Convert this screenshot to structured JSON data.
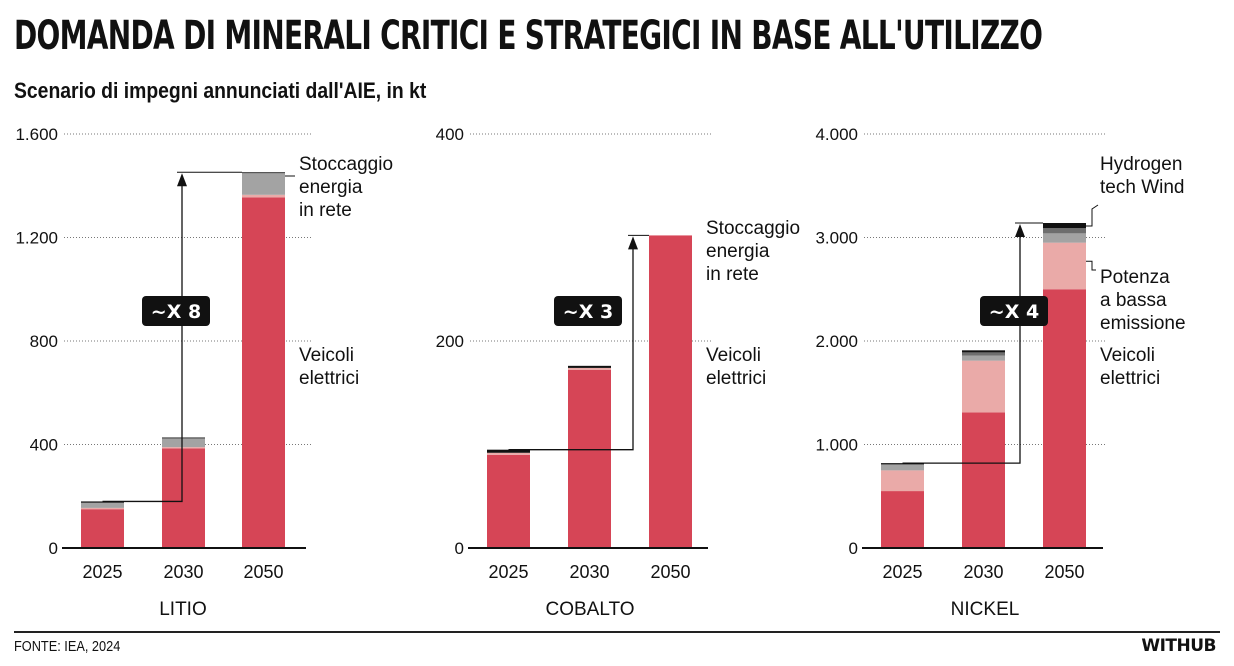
{
  "title": "DOMANDA DI MINERALI CRITICI E STRATEGICI IN BASE ALL'UTILIZZO",
  "subtitle": "Scenario di impegni annunciati dall'AIE, in kt",
  "source": "FONTE: IEA, 2024",
  "brand": "WITHUB",
  "colors": {
    "Veicoli elettrici": "#d64556",
    "Potenza a bassa emissione": "#eaaaa8",
    "Stoccaggio energia in rete": "#a3a3a3",
    "Hydrogen": "#6e6e6e",
    "tech Wind": "#111111"
  },
  "chart_data": [
    {
      "type": "bar",
      "stacked": true,
      "name": "LITIO",
      "categories": [
        "2025",
        "2030",
        "2050"
      ],
      "ylim": [
        0,
        1600
      ],
      "yticks": [
        0,
        400,
        800,
        1200,
        1600
      ],
      "ytick_labels": [
        "0",
        "400",
        "800",
        "1.200",
        "1.600"
      ],
      "grid": true,
      "series": [
        {
          "name": "Veicoli elettrici",
          "values": [
            150,
            385,
            1355
          ]
        },
        {
          "name": "Potenza a bassa emissione",
          "values": [
            5,
            5,
            10
          ]
        },
        {
          "name": "Stoccaggio energia in rete",
          "values": [
            20,
            35,
            85
          ]
        },
        {
          "name": "tech Wind",
          "values": [
            5,
            2,
            2
          ]
        }
      ],
      "multiplier": "~X 8",
      "labels": [
        {
          "text": [
            "Stoccaggio",
            "energia",
            "in rete"
          ],
          "series": "Stoccaggio energia in rete"
        },
        {
          "text": [
            "Veicoli",
            "elettrici"
          ],
          "series": "Veicoli elettrici"
        }
      ]
    },
    {
      "type": "bar",
      "stacked": true,
      "name": "COBALTO",
      "categories": [
        "2025",
        "2030",
        "2050"
      ],
      "ylim": [
        0,
        400
      ],
      "yticks": [
        0,
        200,
        400
      ],
      "ytick_labels": [
        "0",
        "200",
        "400"
      ],
      "grid": true,
      "series": [
        {
          "name": "Veicoli elettrici",
          "values": [
            90,
            172,
            302
          ]
        },
        {
          "name": "Potenza a bassa emissione",
          "values": [
            2,
            2,
            0
          ]
        },
        {
          "name": "tech Wind",
          "values": [
            3,
            2,
            0
          ]
        }
      ],
      "multiplier": "~X 3",
      "labels": [
        {
          "text": [
            "Stoccaggio",
            "energia",
            "in rete"
          ],
          "series": "Stoccaggio energia in rete"
        },
        {
          "text": [
            "Veicoli",
            "elettrici"
          ],
          "series": "Veicoli elettrici"
        }
      ]
    },
    {
      "type": "bar",
      "stacked": true,
      "name": "NICKEL",
      "categories": [
        "2025",
        "2030",
        "2050"
      ],
      "ylim": [
        0,
        4000
      ],
      "yticks": [
        0,
        1000,
        2000,
        3000,
        4000
      ],
      "ytick_labels": [
        "0",
        "1.000",
        "2.000",
        "3.000",
        "4.000"
      ],
      "grid": true,
      "series": [
        {
          "name": "Veicoli elettrici",
          "values": [
            550,
            1310,
            2500
          ]
        },
        {
          "name": "Potenza a bassa emissione",
          "values": [
            200,
            500,
            450
          ]
        },
        {
          "name": "Stoccaggio energia in rete",
          "values": [
            50,
            50,
            90
          ]
        },
        {
          "name": "Hydrogen",
          "values": [
            10,
            30,
            50
          ]
        },
        {
          "name": "tech Wind",
          "values": [
            10,
            20,
            50
          ]
        }
      ],
      "multiplier": "~X 4",
      "labels": [
        {
          "text": [
            "Hydrogen",
            "tech Wind"
          ],
          "series": "tech Wind"
        },
        {
          "text": [
            "Potenza",
            "a bassa",
            "emissione"
          ],
          "series": "Potenza a bassa emissione"
        },
        {
          "text": [
            "Veicoli",
            "elettrici"
          ],
          "series": "Veicoli elettrici"
        }
      ]
    }
  ]
}
